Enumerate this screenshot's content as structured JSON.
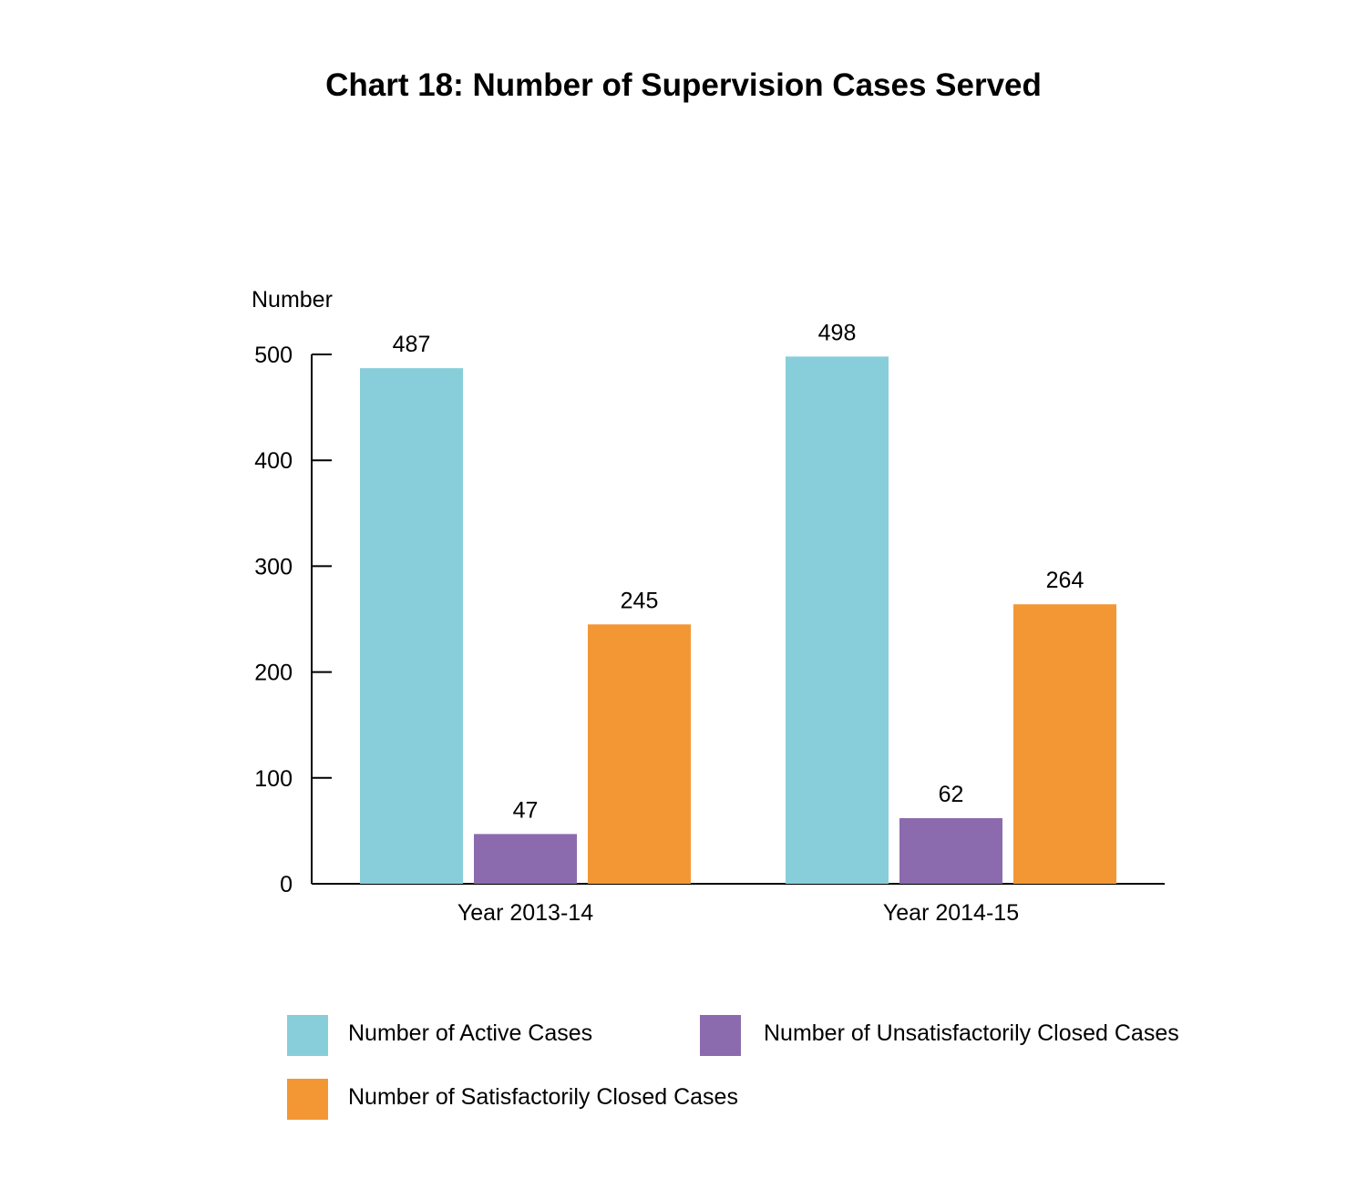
{
  "chart_data": {
    "type": "bar",
    "title": "Chart 18: Number of Supervision Cases Served",
    "xlabel": "",
    "ylabel": "Number",
    "ylim": [
      0,
      500
    ],
    "yticks": [
      0,
      100,
      200,
      300,
      400,
      500
    ],
    "grid": false,
    "legend_position": "bottom",
    "categories": [
      "Year 2013-14",
      "Year 2014-15"
    ],
    "series": [
      {
        "name": "Number of Active Cases",
        "color": "#87ceda",
        "values": [
          487,
          498
        ]
      },
      {
        "name": "Number of Unsatisfactorily Closed Cases",
        "color": "#8b6bae",
        "values": [
          47,
          62
        ]
      },
      {
        "name": "Number of Satisfactorily Closed Cases",
        "color": "#f39734",
        "values": [
          245,
          264
        ]
      }
    ]
  }
}
